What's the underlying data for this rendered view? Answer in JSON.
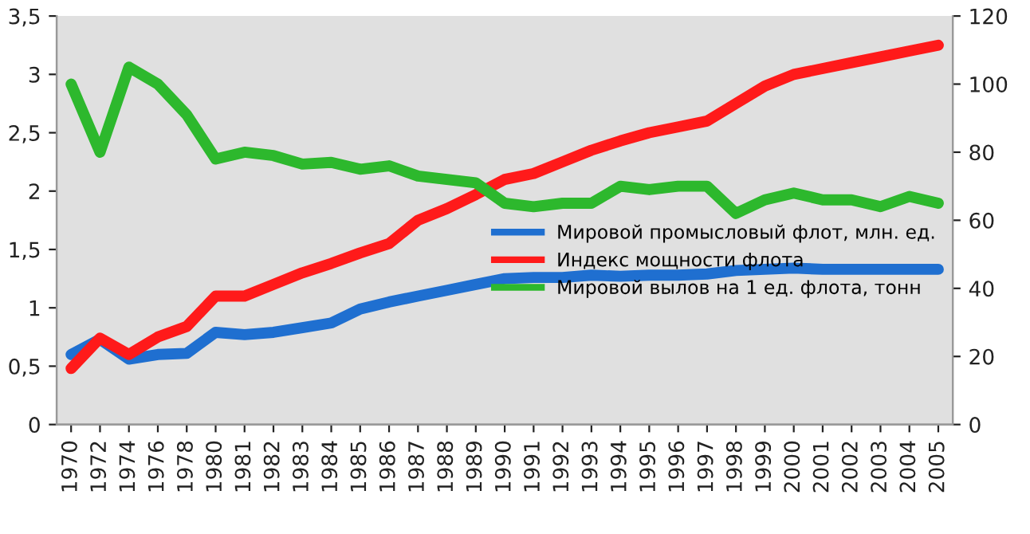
{
  "chart_data": {
    "type": "line",
    "categories": [
      "1970",
      "1972",
      "1974",
      "1976",
      "1978",
      "1980",
      "1981",
      "1982",
      "1983",
      "1984",
      "1985",
      "1986",
      "1987",
      "1988",
      "1989",
      "1990",
      "1991",
      "1992",
      "1993",
      "1994",
      "1995",
      "1996",
      "1997",
      "1998",
      "1999",
      "2000",
      "2001",
      "2002",
      "2003",
      "2004",
      "2005"
    ],
    "series": [
      {
        "name": "Мировой промысловый флот, млн. ед.",
        "color": "#1f6fd0",
        "values": [
          0.6,
          0.73,
          0.56,
          0.6,
          0.61,
          0.79,
          0.77,
          0.79,
          0.83,
          0.87,
          0.99,
          1.05,
          1.1,
          1.15,
          1.2,
          1.25,
          1.26,
          1.26,
          1.28,
          1.27,
          1.28,
          1.28,
          1.29,
          1.32,
          1.33,
          1.34,
          1.33,
          1.33,
          1.33,
          1.33,
          1.33
        ]
      },
      {
        "name": "Индекс мощности флота",
        "color": "#ff1a1a",
        "values": [
          0.48,
          0.74,
          0.6,
          0.75,
          0.84,
          1.1,
          1.1,
          1.2,
          1.3,
          1.38,
          1.47,
          1.55,
          1.75,
          1.85,
          1.97,
          2.1,
          2.15,
          2.25,
          2.35,
          2.43,
          2.5,
          2.55,
          2.6,
          2.75,
          2.9,
          3.0,
          3.05,
          3.1,
          3.15,
          3.2,
          3.25
        ]
      },
      {
        "name": "Мировой вылов на 1 ед. флота, тонн",
        "color": "#2db82d",
        "axis": "y2",
        "values": [
          100,
          80,
          105,
          100,
          91,
          78,
          80,
          79,
          76.5,
          77,
          75,
          76,
          73,
          72,
          71,
          65,
          64,
          65,
          65,
          70,
          69,
          70,
          70,
          62,
          66,
          68,
          66,
          66,
          64,
          67,
          65
        ]
      }
    ],
    "ylim": [
      0,
      3.5
    ],
    "yticks": [
      0,
      {
        "value": 0.5,
        "label": "0,5"
      },
      1,
      {
        "value": 1.5,
        "label": "1,5"
      },
      2,
      {
        "value": 2.5,
        "label": "2,5"
      },
      3,
      {
        "value": 3.5,
        "label": "3,5"
      }
    ],
    "y2lim": [
      0,
      120
    ],
    "y2ticks": [
      0,
      20,
      40,
      60,
      80,
      100,
      120
    ],
    "legend": "right",
    "grid": false
  }
}
